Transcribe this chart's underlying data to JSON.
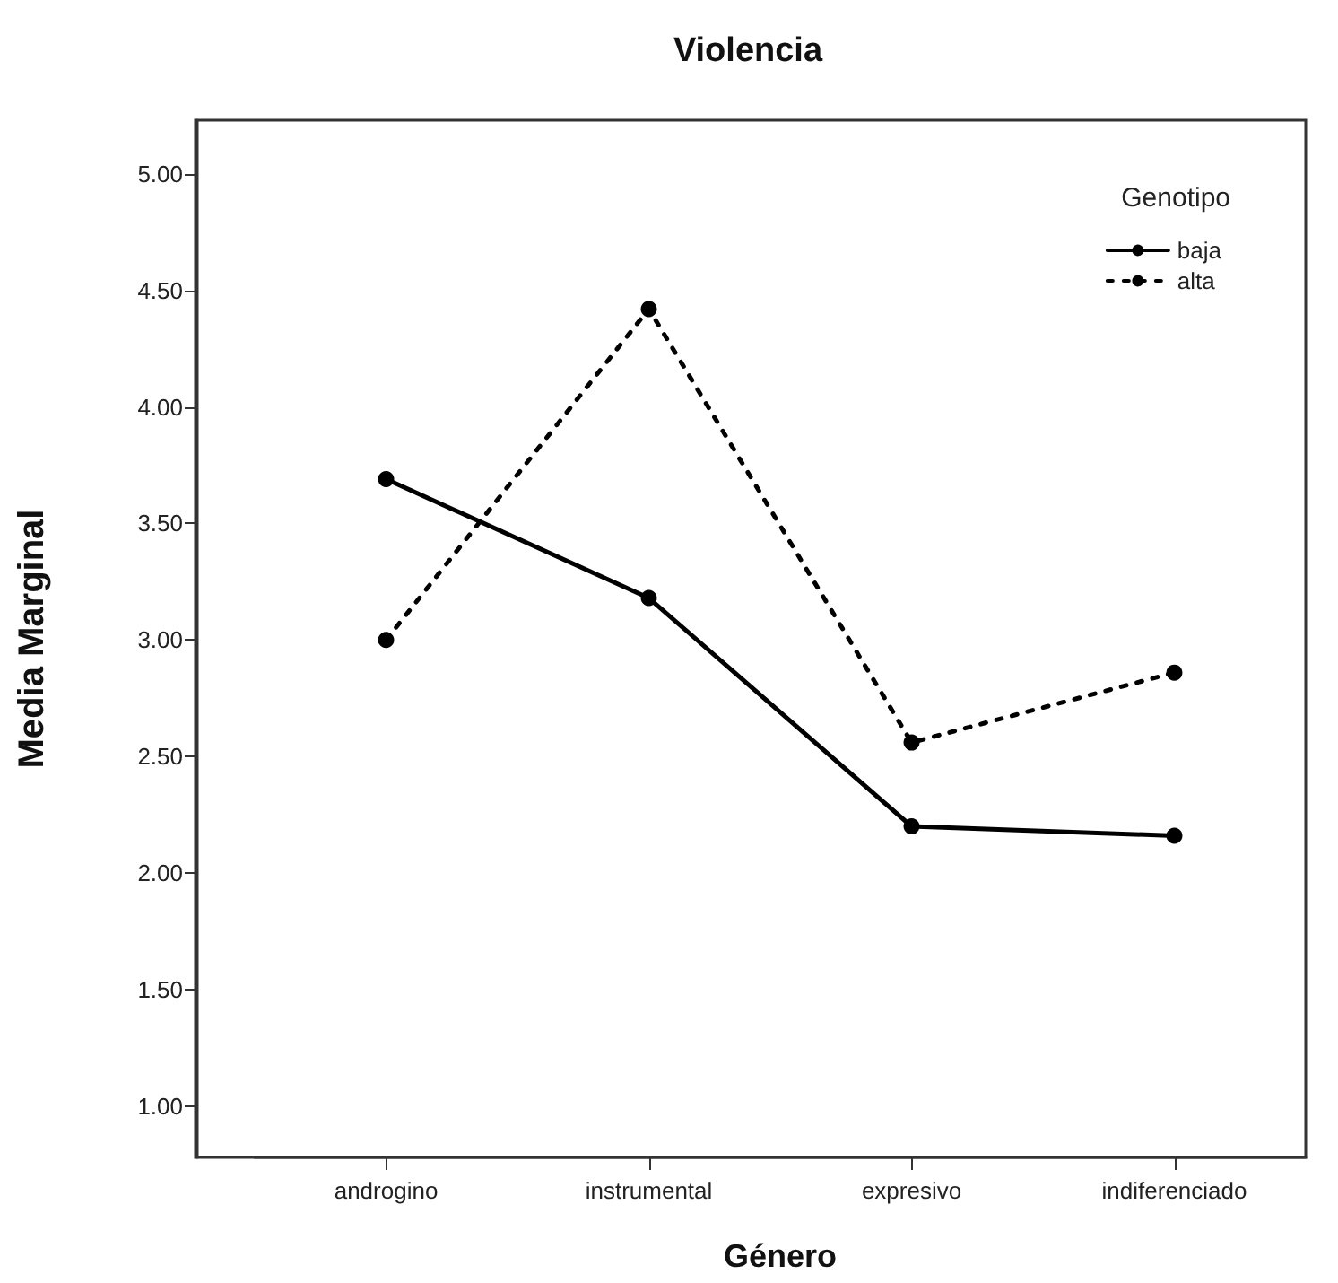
{
  "chart_data": {
    "type": "line",
    "title": "Violencia",
    "xlabel": "Género",
    "ylabel": "Media Marginal",
    "legend_title": "Genotipo",
    "categories": [
      "androgino",
      "instrumental",
      "expresivo",
      "indiferenciado"
    ],
    "series": [
      {
        "name": "baja",
        "color": "#000000",
        "line_style": "solid",
        "values": [
          3.69,
          3.18,
          2.2,
          2.16
        ]
      },
      {
        "name": "alta",
        "color": "#000000",
        "line_style": "dotted",
        "values": [
          3.0,
          4.42,
          2.56,
          2.86
        ]
      }
    ],
    "ylim": [
      0.78,
      5.23
    ],
    "yticks": [
      {
        "value": 1,
        "label": "1.00"
      },
      {
        "value": 1.5,
        "label": "1.50"
      },
      {
        "value": 2,
        "label": "2.00"
      },
      {
        "value": 2.5,
        "label": "2.50"
      },
      {
        "value": 3,
        "label": "3.00"
      },
      {
        "value": 3.5,
        "label": "3.50"
      },
      {
        "value": 4,
        "label": "4.00"
      },
      {
        "value": 4.5,
        "label": "4.50"
      },
      {
        "value": 5,
        "label": "5.00"
      }
    ],
    "marker": "circle",
    "grid": false,
    "legend": "top right"
  }
}
